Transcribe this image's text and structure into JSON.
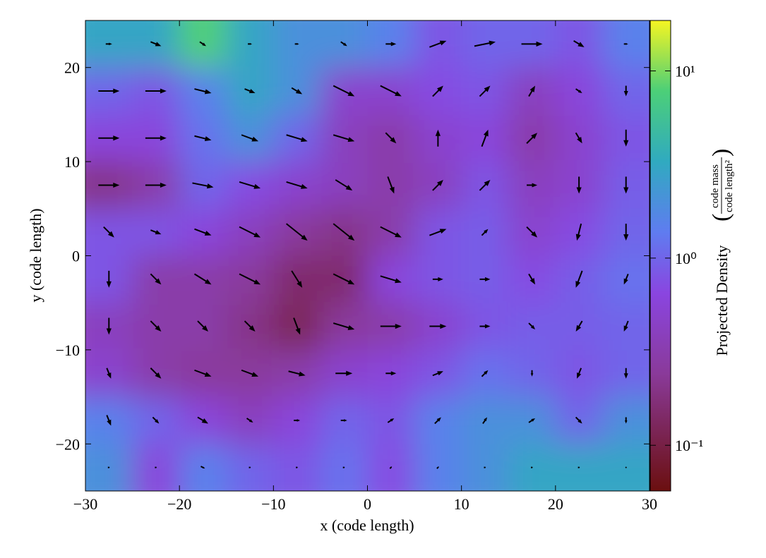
{
  "chart_data": {
    "type": "quiver-heatmap",
    "xlabel": "x  (code length)",
    "ylabel": "y  (code length)",
    "xlim": [
      -30,
      30
    ],
    "ylim": [
      -25,
      25
    ],
    "xticks": [
      {
        "value": -30,
        "label": "−30"
      },
      {
        "value": -20,
        "label": "−20"
      },
      {
        "value": -10,
        "label": "−10"
      },
      0,
      10,
      20,
      30
    ],
    "yticks": [
      {
        "value": -20,
        "label": "−20"
      },
      {
        "value": -10,
        "label": "−10"
      },
      0,
      10,
      20
    ],
    "x": [
      -27.5,
      -22.5,
      -17.5,
      -12.5,
      -7.5,
      -2.5,
      2.5,
      7.5,
      12.5,
      17.5,
      22.5,
      27.5
    ],
    "y": [
      22.5,
      17.5,
      12.5,
      7.5,
      2.5,
      -2.5,
      -7.5,
      -12.5,
      -17.5,
      -22.5
    ],
    "density": [
      [
        3,
        3,
        8,
        3,
        2,
        2,
        1.5,
        0.8,
        1,
        1,
        0.8,
        1.5
      ],
      [
        1,
        0.8,
        1.5,
        3,
        2,
        0.5,
        0.5,
        0.7,
        0.8,
        0.4,
        0.6,
        1
      ],
      [
        0.6,
        0.6,
        1.2,
        2,
        1,
        0.4,
        0.3,
        0.5,
        0.6,
        0.3,
        0.5,
        0.8
      ],
      [
        0.2,
        0.3,
        1,
        0.7,
        0.5,
        0.4,
        0.3,
        0.4,
        0.8,
        0.4,
        0.5,
        0.9
      ],
      [
        0.8,
        0.8,
        0.6,
        0.4,
        0.25,
        0.2,
        0.3,
        0.8,
        0.9,
        0.5,
        0.7,
        1
      ],
      [
        0.8,
        0.3,
        0.3,
        0.25,
        0.15,
        0.15,
        0.6,
        0.8,
        0.9,
        0.7,
        0.9,
        1.2
      ],
      [
        0.4,
        0.3,
        0.3,
        0.2,
        0.12,
        0.25,
        0.3,
        0.5,
        0.8,
        0.9,
        0.9,
        1
      ],
      [
        0.5,
        0.3,
        0.25,
        0.25,
        0.3,
        0.5,
        0.6,
        0.8,
        1.2,
        1,
        0.8,
        1
      ],
      [
        1.5,
        1,
        0.6,
        0.4,
        0.6,
        1,
        0.8,
        1.5,
        2,
        2,
        1,
        2
      ],
      [
        2,
        0.6,
        1.5,
        1,
        0.8,
        1.2,
        0.7,
        1.5,
        2,
        3,
        3,
        3
      ]
    ],
    "u": [
      [
        0.3,
        0.5,
        0.3,
        0.2,
        0.2,
        0.3,
        0.5,
        0.8,
        1,
        1,
        0.5,
        0.2
      ],
      [
        1,
        1,
        0.8,
        0.5,
        0.5,
        1,
        1,
        0.5,
        0.5,
        0.3,
        0.3,
        0
      ],
      [
        1,
        1,
        0.8,
        0.8,
        1,
        1,
        0.5,
        0,
        0.3,
        0.5,
        0.3,
        0
      ],
      [
        1,
        1,
        1,
        1,
        1,
        0.8,
        0.3,
        0.5,
        0.5,
        0.5,
        0,
        0
      ],
      [
        0.5,
        0.5,
        0.8,
        1,
        1,
        1,
        1,
        0.8,
        0.3,
        0.5,
        -0.2,
        0
      ],
      [
        0,
        0.5,
        0.8,
        1,
        0.5,
        1,
        1,
        0.5,
        0.5,
        0.3,
        -0.3,
        -0.2
      ],
      [
        0,
        0.5,
        0.5,
        0.5,
        0.3,
        1,
        1,
        0.8,
        0.5,
        0.3,
        -0.3,
        -0.2
      ],
      [
        0.2,
        0.5,
        0.8,
        0.8,
        0.8,
        0.8,
        0.5,
        0.5,
        0.3,
        0,
        -0.2,
        0
      ],
      [
        0.2,
        0.3,
        0.5,
        0.3,
        0.3,
        0.3,
        0.3,
        0.3,
        0.2,
        0.3,
        0.3,
        0
      ],
      [
        0.1,
        0.1,
        0.2,
        0.1,
        0.1,
        0.1,
        0.1,
        0.1,
        0.1,
        0.1,
        0.1,
        0
      ]
    ],
    "v": [
      [
        0,
        -0.2,
        -0.2,
        0,
        0,
        -0.2,
        0,
        0.3,
        0.2,
        0,
        -0.3,
        0
      ],
      [
        0,
        0,
        -0.2,
        -0.2,
        -0.3,
        -0.5,
        -0.5,
        0.5,
        0.5,
        0.5,
        -0.2,
        -0.5
      ],
      [
        0,
        0,
        -0.2,
        -0.3,
        -0.3,
        -0.3,
        -0.5,
        0.8,
        0.8,
        0.5,
        -0.5,
        -0.8
      ],
      [
        0,
        0,
        -0.2,
        -0.3,
        -0.3,
        -0.5,
        -0.8,
        0.5,
        0.5,
        0,
        -0.8,
        -0.8
      ],
      [
        -0.5,
        -0.2,
        -0.3,
        -0.5,
        -0.8,
        -0.8,
        -0.5,
        0.3,
        0.3,
        -0.5,
        -0.8,
        -0.8
      ],
      [
        -0.8,
        -0.5,
        -0.5,
        -0.5,
        -0.8,
        -0.5,
        -0.3,
        0,
        0,
        -0.5,
        -0.8,
        -0.5
      ],
      [
        -0.8,
        -0.5,
        -0.5,
        -0.5,
        -0.8,
        -0.3,
        0,
        0,
        0,
        -0.3,
        -0.5,
        -0.5
      ],
      [
        -0.5,
        -0.5,
        -0.3,
        -0.3,
        -0.2,
        0,
        0,
        0.2,
        0.3,
        -0.3,
        -0.5,
        -0.5
      ],
      [
        -0.5,
        -0.3,
        -0.3,
        -0.2,
        0,
        0,
        0.2,
        0.3,
        0.3,
        0.2,
        -0.3,
        -0.3
      ],
      [
        0,
        0,
        -0.1,
        0,
        0,
        0,
        0.1,
        0.1,
        0,
        0,
        0,
        0
      ]
    ],
    "colorbar": {
      "log": true,
      "lim": [
        0.057,
        18.6
      ],
      "ticks": [
        {
          "value": 0.1,
          "label": "10⁻¹"
        },
        {
          "value": 1,
          "label": "10⁰"
        },
        {
          "value": 10,
          "label": "10¹"
        }
      ],
      "label": "Projected Density",
      "unit_numerator": "code mass",
      "unit_denominator": "code length²"
    }
  }
}
